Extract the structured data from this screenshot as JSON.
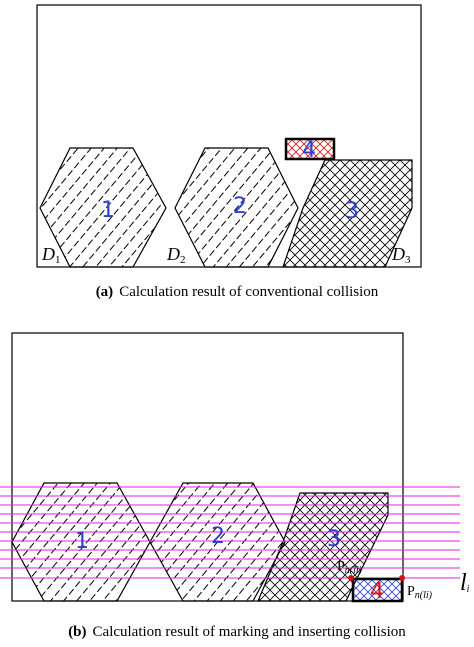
{
  "panel_a": {
    "caption_label": "(a)",
    "caption_text": "Calculation result of conventional collision",
    "parts": [
      "1",
      "2",
      "3",
      "4"
    ],
    "regions": [
      {
        "letter": "D",
        "index": "1"
      },
      {
        "letter": "D",
        "index": "2"
      },
      {
        "letter": "D",
        "index": "3"
      }
    ]
  },
  "panel_b": {
    "caption_label": "(b)",
    "caption_text": "Calculation result of marking and inserting collision",
    "parts": [
      "1",
      "2",
      "3",
      "4"
    ],
    "point_upper": {
      "p": "P",
      "sub": "n(li)"
    },
    "point_lower": {
      "p": "P",
      "sub": "n(li)"
    },
    "line_label": {
      "l": "l",
      "sub": "i"
    }
  },
  "colors": {
    "outline": "#000000",
    "part_number": "#2b3fd6",
    "part4_number_red": "#e01010",
    "scan_lines": "#e020e0",
    "marker_points": "#d01010"
  }
}
